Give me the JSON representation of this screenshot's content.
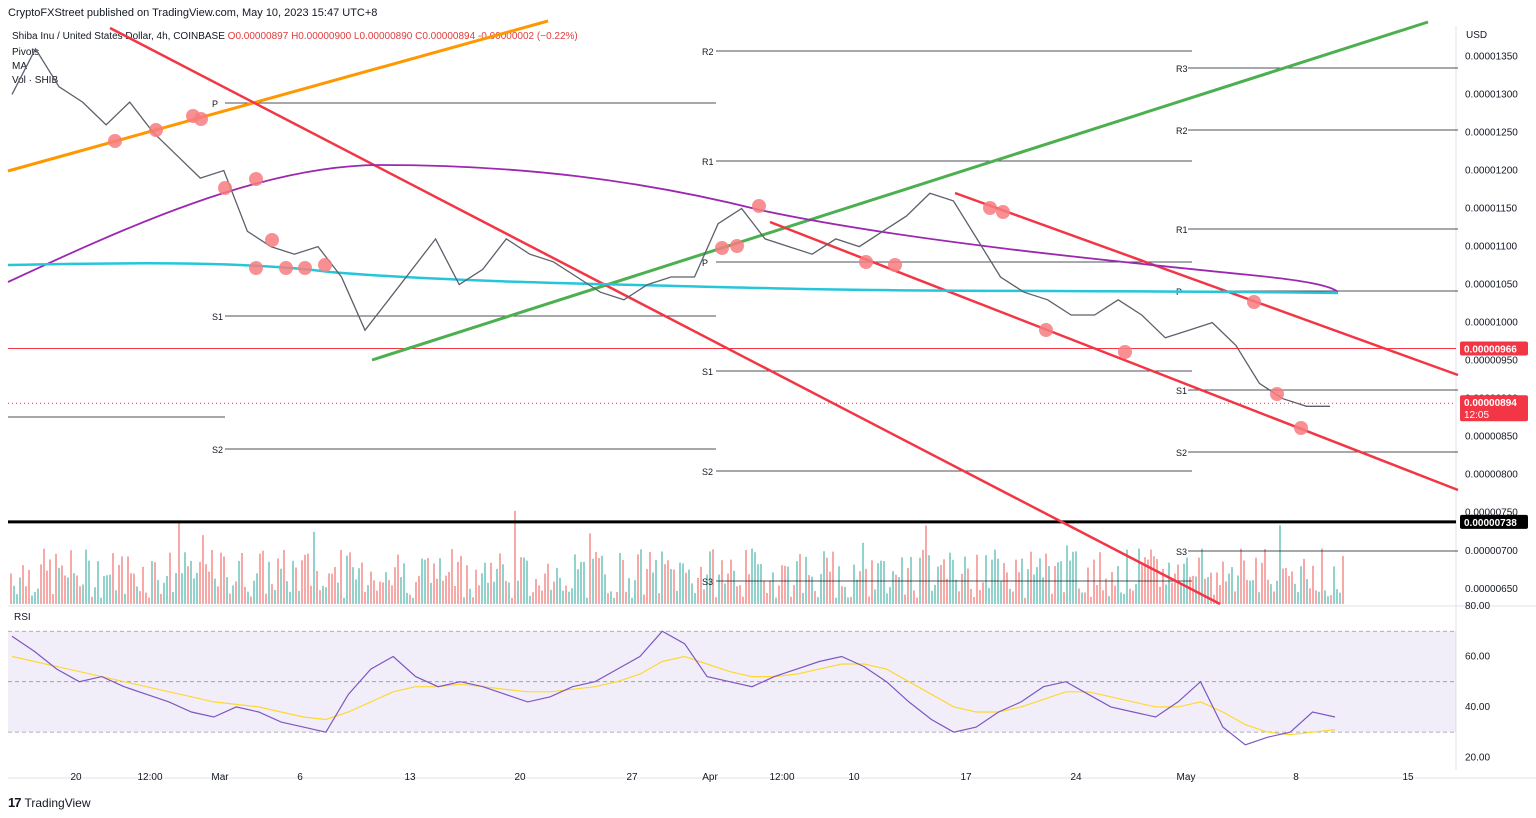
{
  "publisher": "CryptoFXStreet published on TradingView.com, May 10, 2023 15:47 UTC+8",
  "legend": {
    "symbol": "Shiba Inu / United States Dollar, 4h, COINBASE",
    "o": "O0.00000897",
    "h": "H0.00000900",
    "l": "L0.00000890",
    "c": "C0.00000894",
    "chg": "-0.00000002 (−0.22%)"
  },
  "indicators": [
    "Pivots",
    "MA",
    "Vol · SHIB"
  ],
  "currency": "USD",
  "rsi_label": "RSI",
  "footer": "TradingView",
  "colors": {
    "up": "#26a69a",
    "down": "#ef5350",
    "orange": "#ff9800",
    "green": "#4caf50",
    "red": "#f23645",
    "purple": "#9c27b0",
    "cyan": "#26c6da",
    "rsi": "#7e57c2",
    "rsi_ma": "#fdd835",
    "marker": "#f77c80"
  },
  "chart_data": [
    {
      "type": "line",
      "title": "Shiba Inu / United States Dollar, 4h, COINBASE",
      "ylabel": "USD",
      "ylim": [
        6.3e-06,
        1.39e-05
      ],
      "y_ticks": [
        "0.00001350",
        "0.00001300",
        "0.00001250",
        "0.00001200",
        "0.00001150",
        "0.00001100",
        "0.00001050",
        "0.00001000",
        "0.00000950",
        "0.00000900",
        "0.00000850",
        "0.00000800",
        "0.00000750",
        "0.00000700",
        "0.00000650"
      ],
      "x_ticks": [
        "20",
        "12:00",
        "Mar",
        "6",
        "13",
        "20",
        "27",
        "Apr",
        "12:00",
        "10",
        "17",
        "24",
        "May",
        "8",
        "15"
      ],
      "last_price": {
        "value": "0.00000894",
        "countdown": "12:05"
      },
      "horizontal_levels": [
        {
          "value": "0.00000966",
          "style": "red"
        },
        {
          "value": "0.00000738",
          "style": "black"
        }
      ],
      "pivot_labels": [
        "P",
        "S1",
        "S2",
        "R2",
        "R1",
        "P",
        "S1",
        "S2",
        "S3",
        "R3",
        "R2",
        "R1",
        "P",
        "S1",
        "S2",
        "S3"
      ],
      "series": [
        {
          "values": [
            1.3e-05,
            1.36e-05,
            1.31e-05,
            1.29e-05,
            1.26e-05,
            1.29e-05,
            1.25e-05,
            1.22e-05,
            1.19e-05,
            1.2e-05,
            1.12e-05,
            1.1e-05,
            1.09e-05,
            1.1e-05,
            1.06e-05,
            9.9e-06,
            1.03e-05,
            1.07e-05,
            1.11e-05,
            1.05e-05,
            1.07e-05,
            1.11e-05,
            1.09e-05,
            1.08e-05,
            1.06e-05,
            1.04e-05,
            1.03e-05,
            1.05e-05,
            1.06e-05,
            1.06e-05,
            1.13e-05,
            1.15e-05,
            1.11e-05,
            1.1e-05,
            1.09e-05,
            1.11e-05,
            1.1e-05,
            1.12e-05,
            1.14e-05,
            1.17e-05,
            1.16e-05,
            1.11e-05,
            1.06e-05,
            1.04e-05,
            1.03e-05,
            1.01e-05,
            1.01e-05,
            1.03e-05,
            1.01e-05,
            9.8e-06,
            9.9e-06,
            1e-05,
            9.7e-06,
            9.2e-06,
            9e-06,
            8.9e-06,
            8.9e-06
          ]
        }
      ]
    },
    {
      "type": "bar",
      "title": "Vol · SHIB",
      "values": []
    },
    {
      "type": "line",
      "title": "RSI",
      "ylim": [
        15,
        80
      ],
      "y_ticks": [
        "80.00",
        "60.00",
        "40.00",
        "20.00"
      ],
      "bands": [
        70,
        50,
        30
      ],
      "series": [
        {
          "values": [
            68,
            62,
            55,
            50,
            52,
            48,
            45,
            42,
            38,
            36,
            40,
            38,
            34,
            32,
            30,
            45,
            55,
            60,
            52,
            48,
            50,
            48,
            45,
            42,
            44,
            48,
            50,
            55,
            60,
            70,
            65,
            52,
            50,
            48,
            52,
            55,
            58,
            60,
            56,
            50,
            42,
            35,
            30,
            32,
            38,
            42,
            48,
            50,
            45,
            40,
            38,
            36,
            42,
            50,
            32,
            25,
            28,
            30,
            38,
            36
          ]
        },
        {
          "values": [
            60,
            58,
            56,
            54,
            52,
            50,
            48,
            46,
            44,
            42,
            41,
            40,
            38,
            36,
            35,
            38,
            42,
            46,
            48,
            48,
            49,
            48,
            47,
            46,
            46,
            47,
            48,
            50,
            53,
            58,
            60,
            57,
            54,
            52,
            52,
            53,
            55,
            57,
            57,
            55,
            50,
            45,
            40,
            38,
            38,
            40,
            43,
            46,
            46,
            44,
            42,
            40,
            40,
            42,
            38,
            33,
            30,
            29,
            30,
            31
          ]
        }
      ]
    }
  ]
}
